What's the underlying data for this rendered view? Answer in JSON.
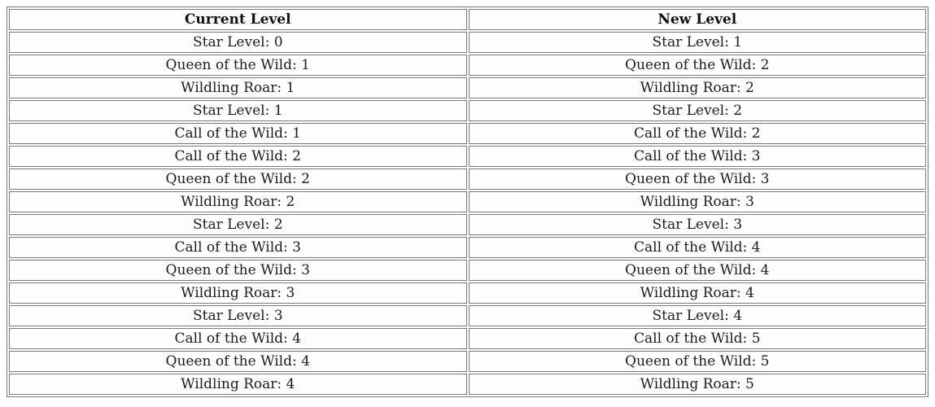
{
  "table": {
    "headers": [
      "Current Level",
      "New Level"
    ],
    "rows": [
      [
        "Star Level: 0",
        "Star Level: 1"
      ],
      [
        "Queen of the Wild: 1",
        "Queen of the Wild: 2"
      ],
      [
        "Wildling Roar: 1",
        "Wildling Roar: 2"
      ],
      [
        "Star Level: 1",
        "Star Level: 2"
      ],
      [
        "Call of the Wild: 1",
        "Call of the Wild: 2"
      ],
      [
        "Call of the Wild: 2",
        "Call of the Wild: 3"
      ],
      [
        "Queen of the Wild: 2",
        "Queen of the Wild: 3"
      ],
      [
        "Wildling Roar: 2",
        "Wildling Roar: 3"
      ],
      [
        "Star Level: 2",
        "Star Level: 3"
      ],
      [
        "Call of the Wild: 3",
        "Call of the Wild: 4"
      ],
      [
        "Queen of the Wild: 3",
        "Queen of the Wild: 4"
      ],
      [
        "Wildling Roar: 3",
        "Wildling Roar: 4"
      ],
      [
        "Star Level: 3",
        "Star Level: 4"
      ],
      [
        "Call of the Wild: 4",
        "Call of the Wild: 5"
      ],
      [
        "Queen of the Wild: 4",
        "Queen of the Wild: 5"
      ],
      [
        "Wildling Roar: 4",
        "Wildling Roar: 5"
      ]
    ],
    "colors": {
      "border": "#7a7a7a",
      "text": "#1c1c1c",
      "cell_background": "#fdfdfd",
      "page_background": "#ffffff"
    }
  }
}
